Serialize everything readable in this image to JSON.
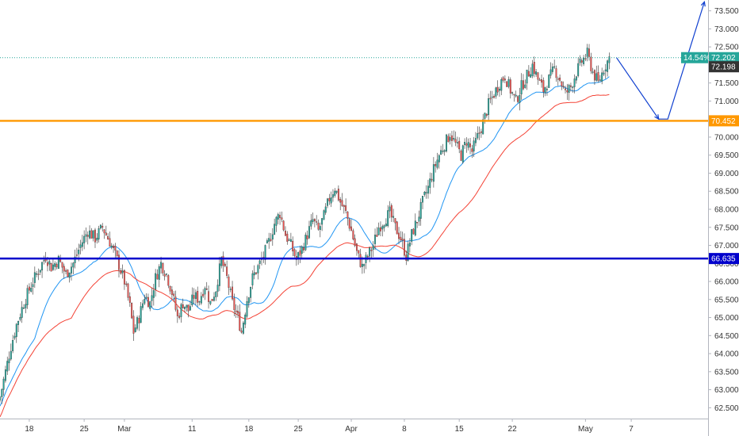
{
  "chart_data": {
    "type": "candlestick",
    "title": "",
    "xlabel": "",
    "ylabel": "",
    "ylim": [
      62.2,
      73.8
    ],
    "grid": false,
    "legend": "none",
    "x_tick_labels": [
      "18",
      "25",
      "Mar",
      "11",
      "18",
      "25",
      "Apr",
      "8",
      "15",
      "22",
      "May",
      "7"
    ],
    "y_tick_labels": [
      "62.500",
      "63.000",
      "63.500",
      "64.000",
      "64.500",
      "65.000",
      "65.500",
      "66.000",
      "66.500",
      "67.000",
      "67.500",
      "68.000",
      "68.500",
      "69.000",
      "69.500",
      "70.000",
      "70.500",
      "71.000",
      "71.500",
      "72.000",
      "72.500",
      "73.000",
      "73.500"
    ],
    "y_ticks": [
      62.5,
      63.0,
      63.5,
      64.0,
      64.5,
      65.0,
      65.5,
      66.0,
      66.5,
      67.0,
      67.5,
      68.0,
      68.5,
      69.0,
      69.5,
      70.0,
      70.5,
      71.0,
      71.5,
      72.0,
      72.5,
      73.0,
      73.5
    ],
    "close_path": [
      [
        0,
        62.8
      ],
      [
        3,
        63.5
      ],
      [
        6,
        64.2
      ],
      [
        9,
        64.8
      ],
      [
        13,
        65.4
      ],
      [
        17,
        65.9
      ],
      [
        21,
        66.3
      ],
      [
        25,
        66.7
      ],
      [
        28,
        66.4
      ],
      [
        32,
        66.6
      ],
      [
        36,
        66.2
      ],
      [
        40,
        66.5
      ],
      [
        44,
        67.0
      ],
      [
        48,
        67.4
      ],
      [
        52,
        67.2
      ],
      [
        56,
        67.5
      ],
      [
        60,
        67.1
      ],
      [
        64,
        66.6
      ],
      [
        68,
        66.0
      ],
      [
        71,
        65.3
      ],
      [
        73,
        64.6
      ],
      [
        76,
        65.0
      ],
      [
        79,
        65.6
      ],
      [
        82,
        65.4
      ],
      [
        85,
        66.1
      ],
      [
        88,
        66.5
      ],
      [
        91,
        66.2
      ],
      [
        94,
        65.7
      ],
      [
        97,
        65.0
      ],
      [
        100,
        65.4
      ],
      [
        103,
        65.2
      ],
      [
        106,
        65.6
      ],
      [
        109,
        65.5
      ],
      [
        112,
        65.9
      ],
      [
        115,
        65.4
      ],
      [
        118,
        65.8
      ],
      [
        121,
        66.6
      ],
      [
        124,
        66.1
      ],
      [
        127,
        65.4
      ],
      [
        130,
        65.0
      ],
      [
        132,
        64.6
      ],
      [
        135,
        65.5
      ],
      [
        138,
        66.1
      ],
      [
        141,
        66.4
      ],
      [
        144,
        66.7
      ],
      [
        147,
        67.1
      ],
      [
        150,
        67.6
      ],
      [
        153,
        67.9
      ],
      [
        156,
        67.3
      ],
      [
        159,
        67.0
      ],
      [
        162,
        66.6
      ],
      [
        165,
        66.9
      ],
      [
        168,
        67.3
      ],
      [
        171,
        67.7
      ],
      [
        174,
        67.4
      ],
      [
        177,
        67.8
      ],
      [
        180,
        68.3
      ],
      [
        183,
        68.6
      ],
      [
        186,
        68.2
      ],
      [
        189,
        67.9
      ],
      [
        192,
        67.4
      ],
      [
        195,
        66.8
      ],
      [
        198,
        66.4
      ],
      [
        201,
        66.7
      ],
      [
        204,
        67.0
      ],
      [
        207,
        67.5
      ],
      [
        210,
        67.7
      ],
      [
        213,
        67.9
      ],
      [
        216,
        67.5
      ],
      [
        219,
        67.2
      ],
      [
        222,
        66.7
      ],
      [
        225,
        67.3
      ],
      [
        228,
        67.7
      ],
      [
        231,
        68.2
      ],
      [
        234,
        68.6
      ],
      [
        237,
        69.1
      ],
      [
        240,
        69.5
      ],
      [
        243,
        69.8
      ],
      [
        246,
        70.1
      ],
      [
        249,
        69.8
      ],
      [
        252,
        69.5
      ],
      [
        255,
        69.9
      ],
      [
        258,
        69.6
      ],
      [
        261,
        70.0
      ],
      [
        264,
        70.4
      ],
      [
        267,
        70.9
      ],
      [
        270,
        71.2
      ],
      [
        273,
        71.5
      ],
      [
        276,
        71.7
      ],
      [
        279,
        71.3
      ],
      [
        282,
        71.0
      ],
      [
        285,
        71.4
      ],
      [
        288,
        71.7
      ],
      [
        291,
        72.0
      ],
      [
        294,
        71.6
      ],
      [
        297,
        71.3
      ],
      [
        300,
        71.6
      ],
      [
        303,
        71.9
      ],
      [
        306,
        71.6
      ],
      [
        309,
        71.2
      ],
      [
        312,
        71.4
      ],
      [
        315,
        71.8
      ],
      [
        318,
        72.1
      ],
      [
        321,
        72.3
      ],
      [
        324,
        71.8
      ],
      [
        327,
        71.5
      ],
      [
        330,
        71.9
      ],
      [
        333,
        72.2
      ]
    ],
    "overlays": [
      {
        "kind": "horizontal-line",
        "level": 72.202,
        "color": "#26a69a",
        "style": "dotted"
      },
      {
        "kind": "horizontal-line",
        "level": 70.452,
        "color": "#ff9800",
        "style": "solid"
      },
      {
        "kind": "horizontal-line",
        "level": 66.635,
        "color": "#0000cc",
        "style": "solid"
      },
      {
        "kind": "projection-arrow",
        "color": "#1040d0",
        "points": [
          [
            337,
            72.2
          ],
          [
            360,
            70.5
          ],
          [
            365,
            70.5
          ],
          [
            385,
            73.75
          ]
        ]
      }
    ],
    "price_tags": [
      {
        "name": "percent-tag",
        "text": "14.54%",
        "level": 72.202,
        "color": "#26a69a"
      },
      {
        "name": "last-price-tag",
        "text": "72.202",
        "level": 72.202,
        "color": "#26a69a"
      },
      {
        "name": "close-price-tag",
        "text": "72.198",
        "level": 71.95,
        "color": "#333333"
      },
      {
        "name": "resistance-tag",
        "text": "70.452",
        "level": 70.452,
        "color": "#ff9800"
      },
      {
        "name": "support-tag",
        "text": "66.635",
        "level": 66.635,
        "color": "#0000cc"
      }
    ],
    "colors": {
      "up": "#26a69a",
      "down": "#ef5350",
      "ma_fast": "#2196f3",
      "ma_slow": "#f44336"
    }
  }
}
